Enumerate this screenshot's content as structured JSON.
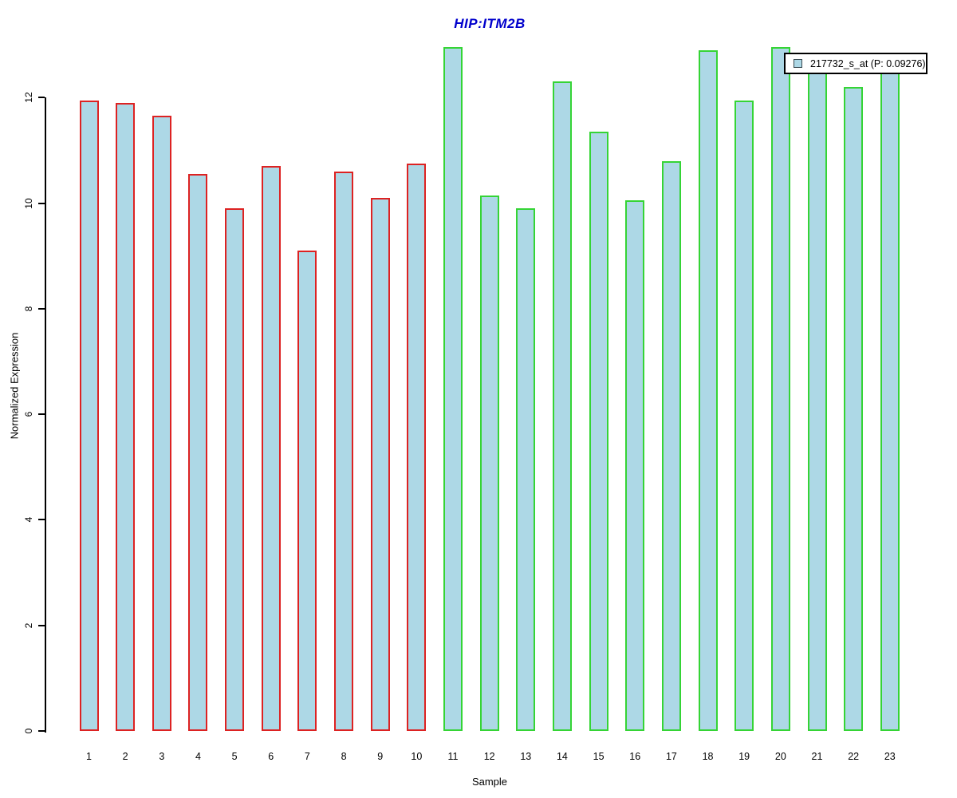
{
  "chart_data": {
    "type": "bar",
    "title": "HIP:ITM2B",
    "title_color": "#0000cc",
    "xlabel": "Sample",
    "ylabel": "Normalized Expression",
    "categories": [
      "1",
      "2",
      "3",
      "4",
      "5",
      "6",
      "7",
      "8",
      "9",
      "10",
      "11",
      "12",
      "13",
      "14",
      "15",
      "16",
      "17",
      "18",
      "19",
      "20",
      "21",
      "22",
      "23"
    ],
    "values": [
      11.95,
      11.9,
      11.65,
      10.55,
      9.9,
      10.7,
      9.1,
      10.6,
      10.1,
      10.75,
      12.95,
      10.15,
      9.9,
      12.3,
      11.35,
      10.05,
      10.8,
      12.9,
      11.95,
      12.95,
      12.6,
      12.2,
      12.6
    ],
    "bar_fill": "#add8e6",
    "groups": [
      {
        "name": "red-outline-group",
        "border_color": "#dd2222",
        "first_sample": 1,
        "last_sample": 10
      },
      {
        "name": "green-outline-group",
        "border_color": "#35d435",
        "first_sample": 11,
        "last_sample": 23
      }
    ],
    "yticks": [
      0,
      2,
      4,
      6,
      8,
      10,
      12
    ],
    "ylim": [
      0,
      13
    ],
    "grid": false,
    "legend": {
      "label": "217732_s_at (P: 0.09276)",
      "swatch_color": "#add8e6",
      "position": "top-right",
      "overlaps_bars": [
        21,
        23
      ]
    }
  }
}
